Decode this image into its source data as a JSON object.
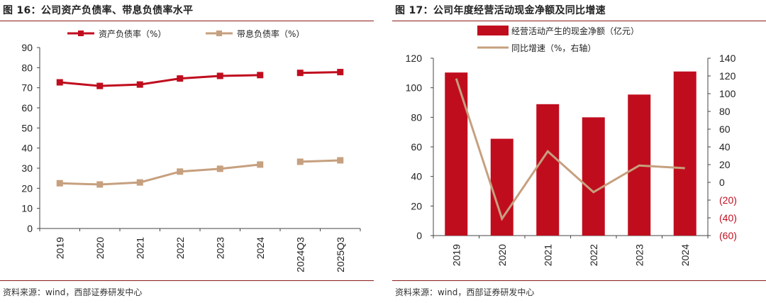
{
  "left": {
    "title": "图 16：公司资产负债率、带息负债率水平",
    "source": "资料来源：wind，西部证券研发中心"
  },
  "right": {
    "title": "图 17：公司年度经营活动现金净额及同比增速",
    "source": "资料来源：wind，西部证券研发中心"
  },
  "colors": {
    "red": "#c00d1e",
    "tan": "#c6a07f",
    "axis": "#444444",
    "rule": "#8a1a1a"
  },
  "chart_data": [
    {
      "type": "line",
      "categories": [
        "2019",
        "2020",
        "2021",
        "2022",
        "2023",
        "2024",
        "2024Q3",
        "2025Q3"
      ],
      "ylim": [
        0,
        90
      ],
      "yticks": [
        0,
        10,
        20,
        30,
        40,
        50,
        60,
        70,
        80,
        90
      ],
      "legend_position": "top",
      "gap_after_index": 5,
      "series": [
        {
          "name": "资产负债率（%）",
          "color": "#c00d1e",
          "marker": "square",
          "values": [
            72.7,
            70.9,
            71.6,
            74.6,
            75.9,
            76.3,
            77.4,
            77.8
          ]
        },
        {
          "name": "带息负债率（%）",
          "color": "#c6a07f",
          "marker": "square",
          "values": [
            22.5,
            21.9,
            22.9,
            28.3,
            29.7,
            31.8,
            33.2,
            33.9
          ]
        }
      ]
    },
    {
      "type": "bar+line",
      "categories": [
        "2019",
        "2020",
        "2021",
        "2022",
        "2023",
        "2024"
      ],
      "ylim_left": [
        0,
        120
      ],
      "yticks_left": [
        0,
        20,
        40,
        60,
        80,
        100,
        120
      ],
      "ylim_right": [
        -60,
        140
      ],
      "yticks_right": [
        -60,
        -40,
        -20,
        0,
        20,
        40,
        60,
        80,
        100,
        120,
        140
      ],
      "yticks_right_labels": [
        "(60)",
        "(40)",
        "(20)",
        "0",
        "20",
        "40",
        "60",
        "80",
        "100",
        "120",
        "140"
      ],
      "legend_position": "top",
      "series": [
        {
          "name": "经营活动产生的现金净额（亿元）",
          "type": "bar",
          "axis": "left",
          "color": "#c00d1e",
          "values": [
            110.3,
            65.5,
            88.9,
            80.0,
            95.4,
            111.0
          ]
        },
        {
          "name": "同比增速（%，右轴）",
          "type": "line",
          "axis": "right",
          "color": "#c6a07f",
          "values": [
            117,
            -41,
            35,
            -11,
            19,
            16
          ]
        }
      ]
    }
  ]
}
